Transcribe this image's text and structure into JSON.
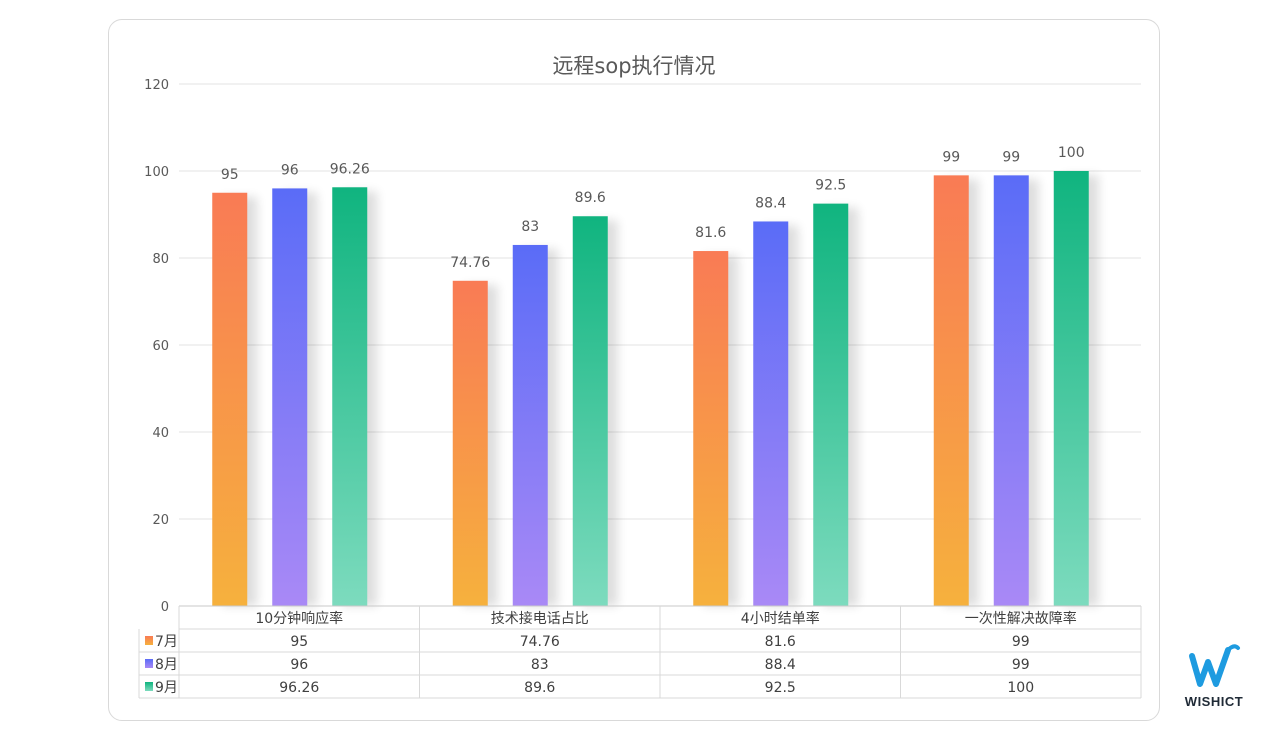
{
  "chart_data": {
    "type": "bar",
    "title": "远程sop执行情况",
    "categories": [
      "10分钟响应率",
      "技术接电话占比",
      "4小时结单率",
      "一次性解决故障率"
    ],
    "series": [
      {
        "name": "7月",
        "values": [
          95,
          74.76,
          81.6,
          99
        ],
        "color_top": "#f97b55",
        "color_bottom": "#f6b13d"
      },
      {
        "name": "8月",
        "values": [
          96,
          83,
          88.4,
          99
        ],
        "color_top": "#5a6cf7",
        "color_bottom": "#a989f6"
      },
      {
        "name": "9月",
        "values": [
          96.26,
          89.6,
          92.5,
          100
        ],
        "color_top": "#10b47f",
        "color_bottom": "#7ddbbe"
      }
    ],
    "value_labels": [
      [
        "95",
        "74.76",
        "81.6",
        "99"
      ],
      [
        "96",
        "83",
        "88.4",
        "99"
      ],
      [
        "96.26",
        "89.6",
        "92.5",
        "100"
      ]
    ],
    "ylim": [
      0,
      120
    ],
    "yticks": [
      0,
      20,
      40,
      60,
      80,
      100,
      120
    ],
    "grid": true,
    "data_table": true
  },
  "logo": {
    "text": "WISHICT",
    "color": "#1e9be0"
  }
}
